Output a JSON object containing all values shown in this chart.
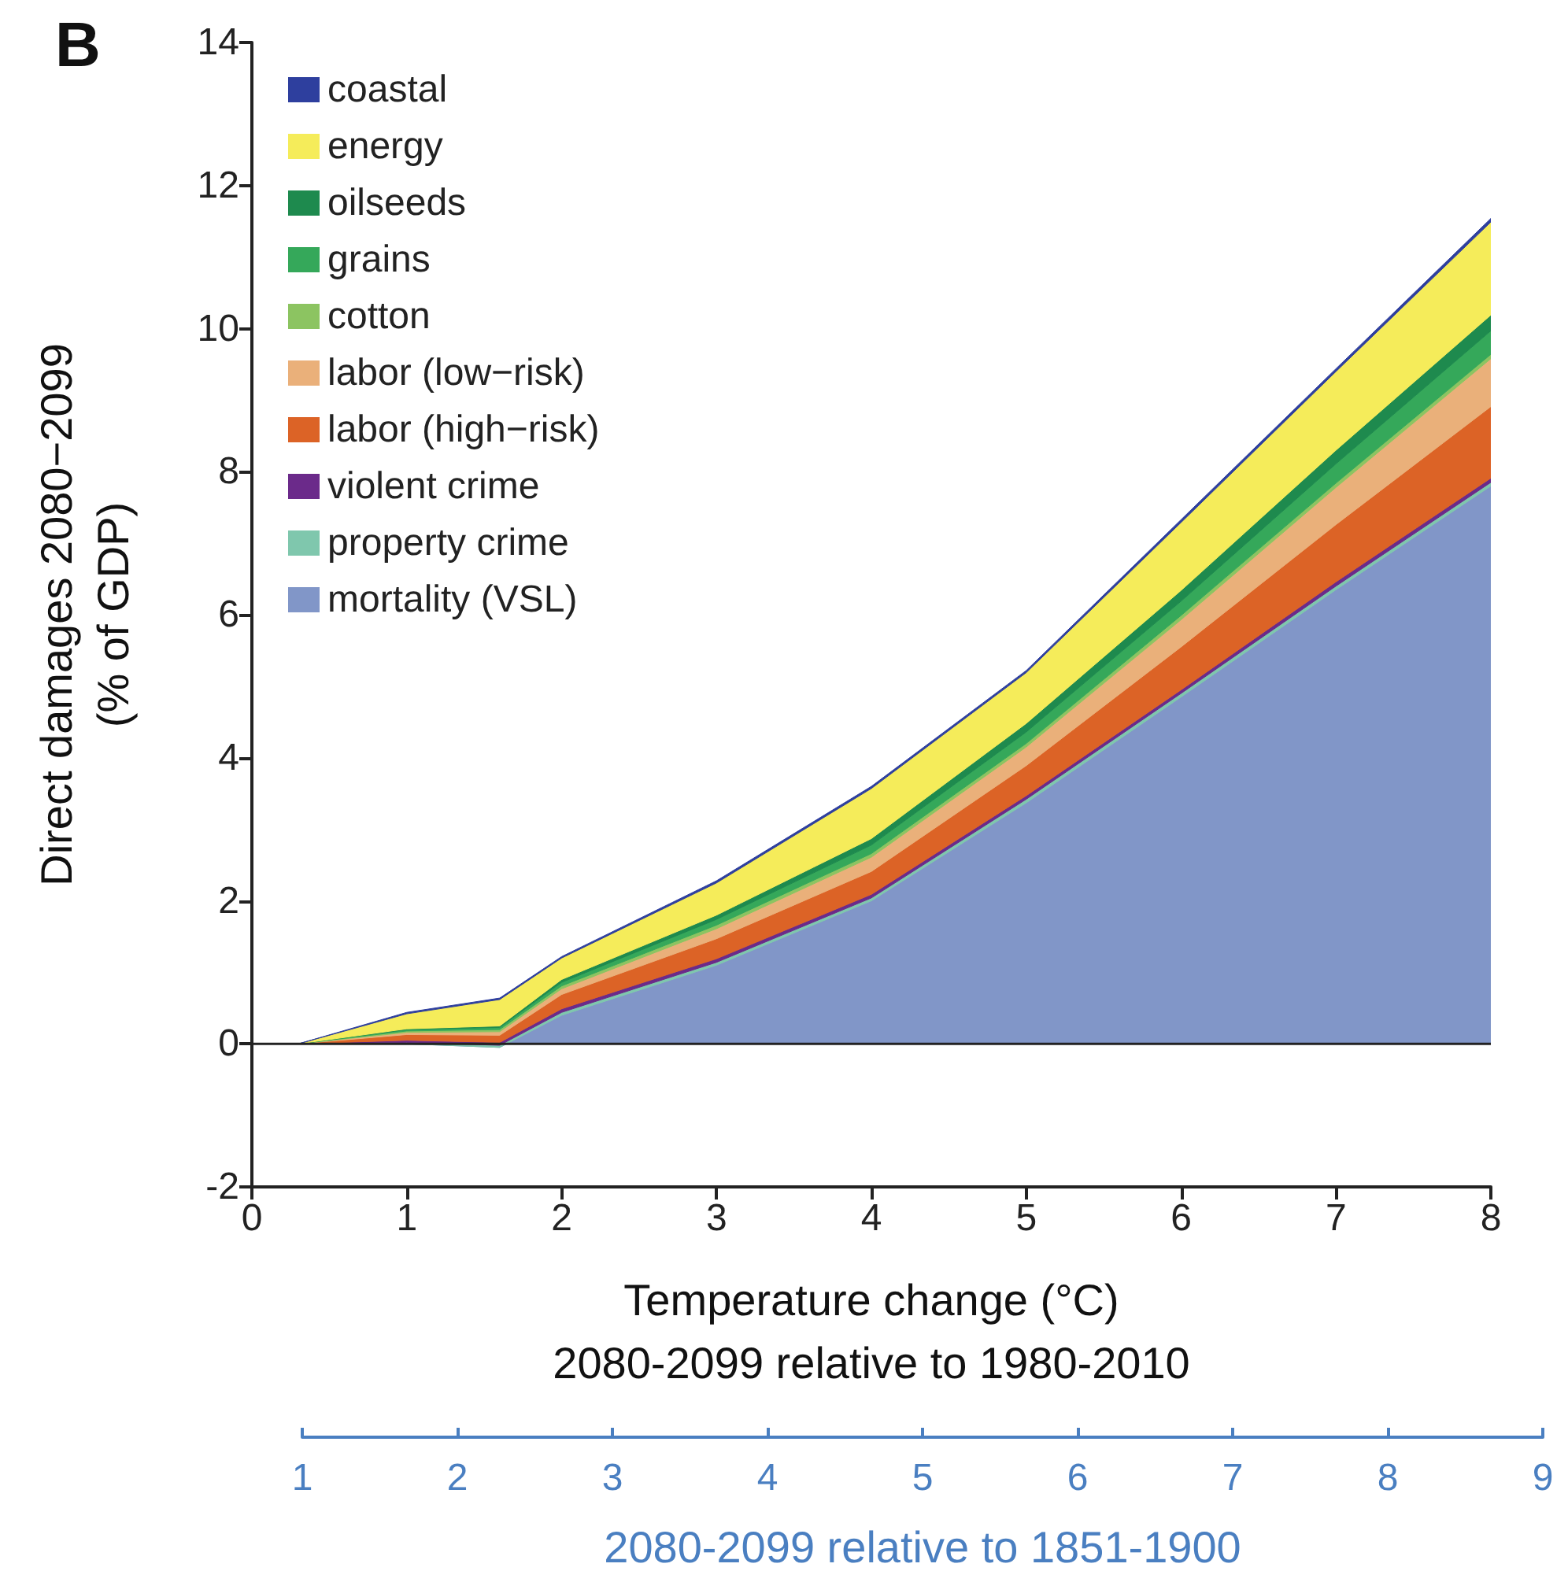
{
  "chart_data": {
    "type": "area",
    "title": "B",
    "xlabel": "Temperature change (°C)\n2080-2099 relative to 1980-2010",
    "ylabel": "Direct damages 2080−2099\n(% of GDP)",
    "x2label": "2080-2099 relative to 1851-1900",
    "x": [
      0.3,
      1,
      1.6,
      2,
      3,
      4,
      5,
      6,
      7,
      8
    ],
    "stacked": true,
    "series": [
      {
        "name": "mortality (VSL)",
        "color": "#8196c8",
        "values": [
          0,
          0,
          -0.05,
          0.4,
          1.1,
          2.0,
          3.37,
          4.85,
          6.35,
          7.8
        ]
      },
      {
        "name": "property crime",
        "color": "#7fc7ad",
        "values": [
          0,
          0.02,
          0.03,
          0.04,
          0.04,
          0.04,
          0.05,
          0.05,
          0.05,
          0.05
        ]
      },
      {
        "name": "violent crime",
        "color": "#6b2a8a",
        "values": [
          0,
          0.03,
          0.04,
          0.05,
          0.05,
          0.05,
          0.05,
          0.05,
          0.06,
          0.06
        ]
      },
      {
        "name": "labor (high−risk)",
        "color": "#dc6326",
        "values": [
          0,
          0.08,
          0.1,
          0.2,
          0.28,
          0.32,
          0.42,
          0.6,
          0.8,
          1.0
        ]
      },
      {
        "name": "labor (low−risk)",
        "color": "#eab07a",
        "values": [
          0,
          0.03,
          0.05,
          0.08,
          0.14,
          0.2,
          0.26,
          0.38,
          0.52,
          0.67
        ]
      },
      {
        "name": "cotton",
        "color": "#8cc461",
        "values": [
          0,
          0.02,
          0.03,
          0.04,
          0.05,
          0.05,
          0.05,
          0.06,
          0.06,
          0.06
        ]
      },
      {
        "name": "grains",
        "color": "#35a85a",
        "values": [
          0,
          0.02,
          0.03,
          0.05,
          0.08,
          0.12,
          0.16,
          0.2,
          0.27,
          0.33
        ]
      },
      {
        "name": "oilseeds",
        "color": "#1e8a4e",
        "values": [
          0,
          0.01,
          0.02,
          0.04,
          0.06,
          0.09,
          0.12,
          0.15,
          0.19,
          0.22
        ]
      },
      {
        "name": "energy",
        "color": "#f5ec5a",
        "values": [
          0,
          0.21,
          0.37,
          0.3,
          0.45,
          0.7,
          0.71,
          0.95,
          1.1,
          1.3
        ]
      },
      {
        "name": "coastal",
        "color": "#2e3f9e",
        "values": [
          0,
          0.02,
          0.02,
          0.02,
          0.03,
          0.03,
          0.03,
          0.04,
          0.04,
          0.05
        ]
      }
    ],
    "xlim": [
      0,
      8
    ],
    "xticks": [
      0,
      1,
      2,
      3,
      4,
      5,
      6,
      7,
      8
    ],
    "ylim": [
      -2,
      14
    ],
    "yticks": [
      -2,
      0,
      2,
      4,
      6,
      8,
      10,
      12,
      14
    ],
    "x2lim": [
      1,
      9
    ],
    "x2ticks": [
      1,
      2,
      3,
      4,
      5,
      6,
      7,
      8,
      9
    ],
    "ref_lines": [
      {
        "axis": "y",
        "value": 0,
        "color": "#222222"
      }
    ],
    "legend": "top left",
    "grid": false,
    "line_style": "solid"
  }
}
